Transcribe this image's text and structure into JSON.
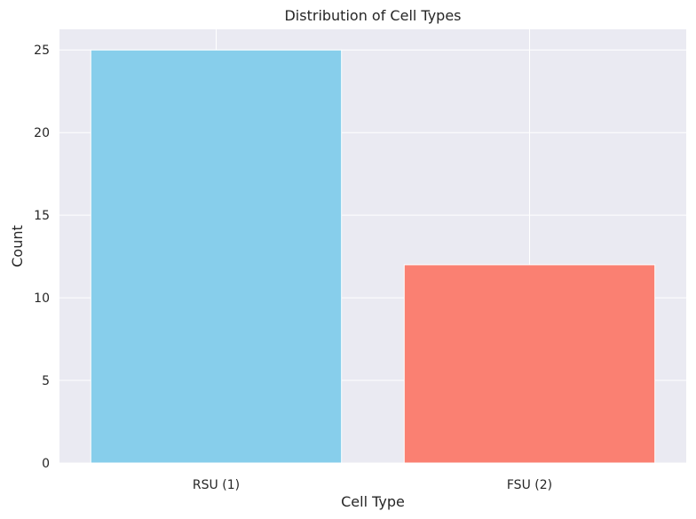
{
  "chart_data": {
    "type": "bar",
    "title": "Distribution of Cell Types",
    "xlabel": "Cell Type",
    "ylabel": "Count",
    "categories": [
      "RSU (1)",
      "FSU (2)"
    ],
    "values": [
      25,
      12
    ],
    "colors": [
      "#87CEEB",
      "#FA8072"
    ],
    "ylim": [
      0,
      26.25
    ],
    "yticks": [
      0,
      5,
      10,
      15,
      20,
      25
    ],
    "grid": true,
    "background": "#EAEAF2",
    "grid_color": "#FFFFFF"
  }
}
